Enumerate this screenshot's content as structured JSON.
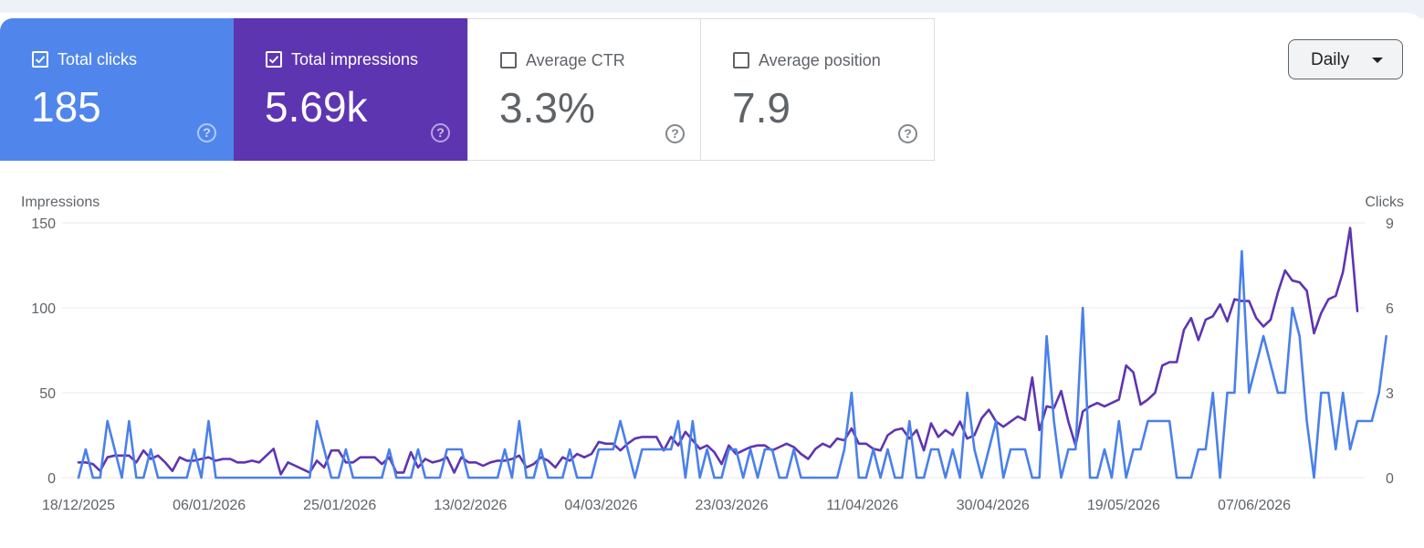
{
  "cards": [
    {
      "label": "Total clicks",
      "value": "185",
      "checked": true
    },
    {
      "label": "Total impressions",
      "value": "5.69k",
      "checked": true
    },
    {
      "label": "Average CTR",
      "value": "3.3%",
      "checked": false
    },
    {
      "label": "Average position",
      "value": "7.9",
      "checked": false
    }
  ],
  "help_glyph": "?",
  "interval_select": {
    "label": "Daily"
  },
  "colors": {
    "clicks": "#4a80ea",
    "impressions": "#5e35b1",
    "grid": "#e8eaed"
  },
  "chart_data": {
    "type": "line",
    "x_start": "18/12/2025",
    "x_end": "22/06/2026",
    "x_tick_labels": [
      "18/12/2025",
      "06/01/2026",
      "25/01/2026",
      "13/02/2026",
      "04/03/2026",
      "23/03/2026",
      "11/04/2026",
      "30/04/2026",
      "19/05/2026",
      "07/06/2026"
    ],
    "y_left": {
      "label": "Impressions",
      "ticks": [
        0,
        50,
        100,
        150
      ],
      "lim": [
        0,
        150
      ]
    },
    "y_right": {
      "label": "Clicks",
      "ticks": [
        0,
        3,
        6,
        9
      ],
      "lim": [
        0,
        9
      ]
    },
    "grid": true,
    "series": [
      {
        "name": "Impressions",
        "axis": "left",
        "color": "#5e35b1",
        "values": [
          9,
          9,
          8,
          4,
          12,
          13,
          13,
          13,
          9,
          16,
          11,
          13,
          9,
          4,
          12,
          10,
          10,
          11,
          12,
          10,
          11,
          11,
          9,
          9,
          10,
          9,
          13,
          17,
          2,
          9,
          7,
          5,
          3,
          10,
          6,
          16,
          16,
          9,
          9,
          12,
          12,
          12,
          8,
          12,
          3,
          3,
          15,
          6,
          11,
          9,
          10,
          12,
          3,
          12,
          9,
          9,
          7,
          9,
          10,
          10,
          11,
          13,
          6,
          8,
          12,
          10,
          6,
          12,
          10,
          14,
          12,
          14,
          21,
          20,
          20,
          16,
          20,
          23,
          24,
          24,
          24,
          16,
          24,
          19,
          27,
          22,
          17,
          19,
          15,
          8,
          19,
          14,
          16,
          18,
          19,
          19,
          16,
          18,
          20,
          18,
          14,
          11,
          17,
          20,
          18,
          23,
          22,
          29,
          20,
          20,
          17,
          16,
          25,
          28,
          29,
          23,
          28,
          16,
          32,
          24,
          28,
          25,
          33,
          23,
          25,
          35,
          40,
          33,
          30,
          33,
          36,
          34,
          59,
          28,
          42,
          41,
          51,
          33,
          19,
          39,
          42,
          44,
          42,
          44,
          46,
          66,
          62,
          43,
          46,
          50,
          66,
          68,
          68,
          87,
          94,
          81,
          93,
          95,
          102,
          92,
          105,
          104,
          104,
          94,
          89,
          93,
          109,
          122,
          116,
          115,
          110,
          85,
          97,
          105,
          107,
          121,
          147,
          98
        ]
      },
      {
        "name": "Clicks",
        "axis": "right",
        "color": "#4a80ea",
        "values": [
          0,
          1,
          0,
          0,
          2,
          1,
          0,
          2,
          0,
          0,
          1,
          0,
          0,
          0,
          0,
          0,
          1,
          0,
          2,
          0,
          0,
          0,
          0,
          0,
          0,
          0,
          0,
          0,
          0,
          0,
          0,
          0,
          0,
          2,
          1,
          0,
          0,
          1,
          0,
          0,
          0,
          0,
          0,
          1,
          0,
          0,
          0,
          1,
          0,
          0,
          0,
          1,
          1,
          1,
          0,
          0,
          0,
          0,
          0,
          1,
          0,
          2,
          0,
          0,
          1,
          0,
          0,
          0,
          1,
          0,
          0,
          0,
          1,
          1,
          1,
          2,
          1,
          0,
          1,
          1,
          1,
          1,
          1,
          2,
          0,
          2,
          0,
          1,
          0,
          0,
          1,
          1,
          0,
          1,
          0,
          1,
          1,
          0,
          0,
          1,
          0,
          0,
          0,
          0,
          0,
          0,
          1,
          3,
          0,
          0,
          1,
          0,
          1,
          0,
          0,
          2,
          0,
          0,
          1,
          1,
          0,
          1,
          0,
          3,
          1,
          0,
          1,
          2,
          0,
          1,
          1,
          1,
          0,
          0,
          5,
          2,
          0,
          1,
          1,
          6,
          0,
          0,
          1,
          0,
          2,
          0,
          1,
          1,
          2,
          2,
          2,
          2,
          0,
          0,
          0,
          1,
          1,
          3,
          0,
          3,
          3,
          8,
          3,
          4,
          5,
          4,
          3,
          3,
          6,
          5,
          2,
          0,
          3,
          3,
          1,
          3,
          1,
          2,
          2,
          2,
          3,
          5
        ]
      }
    ]
  }
}
